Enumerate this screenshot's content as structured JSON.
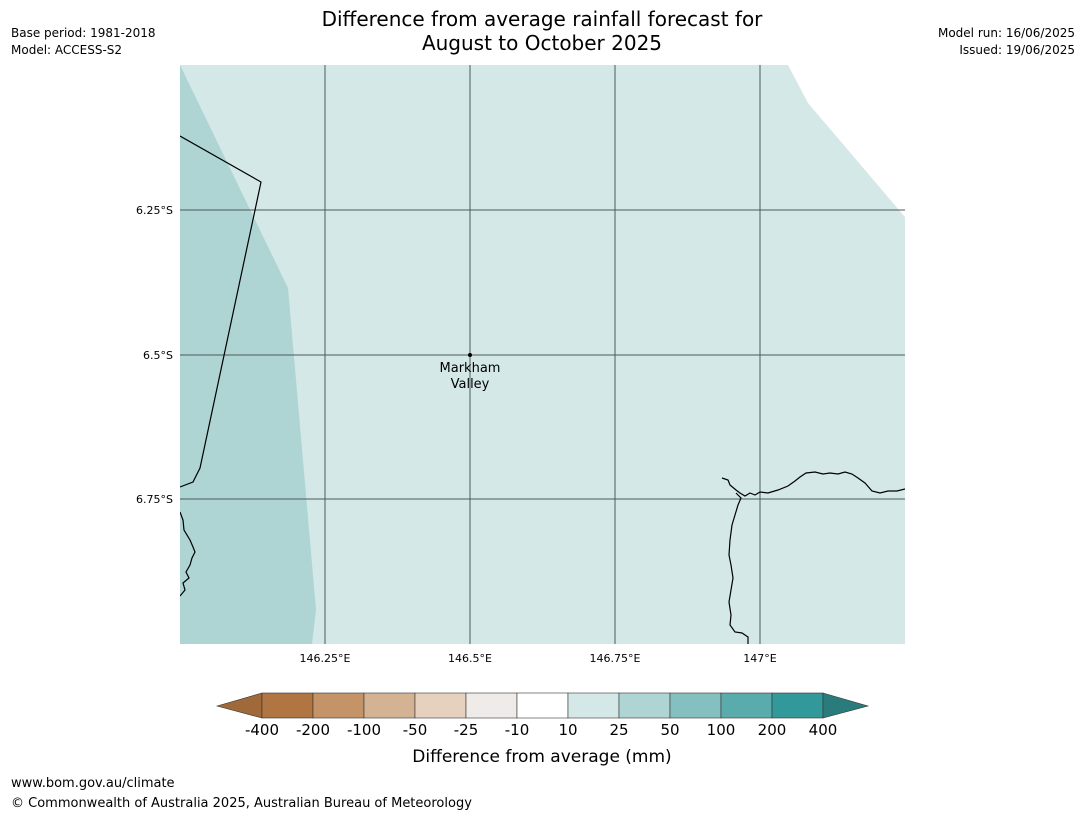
{
  "header": {
    "title_line1": "Difference from average rainfall forecast for",
    "title_line2": "August to October 2025",
    "base_period": "Base period: 1981-2018",
    "model": "Model: ACCESS-S2",
    "model_run": "Model run: 16/06/2025",
    "issued": "Issued: 19/06/2025"
  },
  "map": {
    "lat_labels": [
      "6.25°S",
      "6.5°S",
      "6.75°S"
    ],
    "lon_labels": [
      "146.25°E",
      "146.5°E",
      "146.75°E",
      "147°E"
    ],
    "place": {
      "name_line1": "Markham",
      "name_line2": "Valley"
    },
    "colors": {
      "category_10_25": "#d4e8e7",
      "category_25_50": "#aed4d4",
      "gridline": "#4a5a58",
      "coastline": "#000000"
    }
  },
  "legend": {
    "title": "Difference from average (mm)",
    "ticks": [
      "-400",
      "-200",
      "-100",
      "-50",
      "-25",
      "-10",
      "10",
      "25",
      "50",
      "100",
      "200",
      "400"
    ],
    "colors": [
      "#a0693a",
      "#b07540",
      "#c49468",
      "#d4b394",
      "#e6d1bf",
      "#efebe8",
      "#ffffff",
      "#d4e8e7",
      "#aed4d4",
      "#84c0bf",
      "#5aacac",
      "#32999a",
      "#2a7c7c"
    ]
  },
  "footer": {
    "website": "www.bom.gov.au/climate",
    "copyright": "© Commonwealth of Australia 2025, Australian Bureau of Meteorology"
  }
}
